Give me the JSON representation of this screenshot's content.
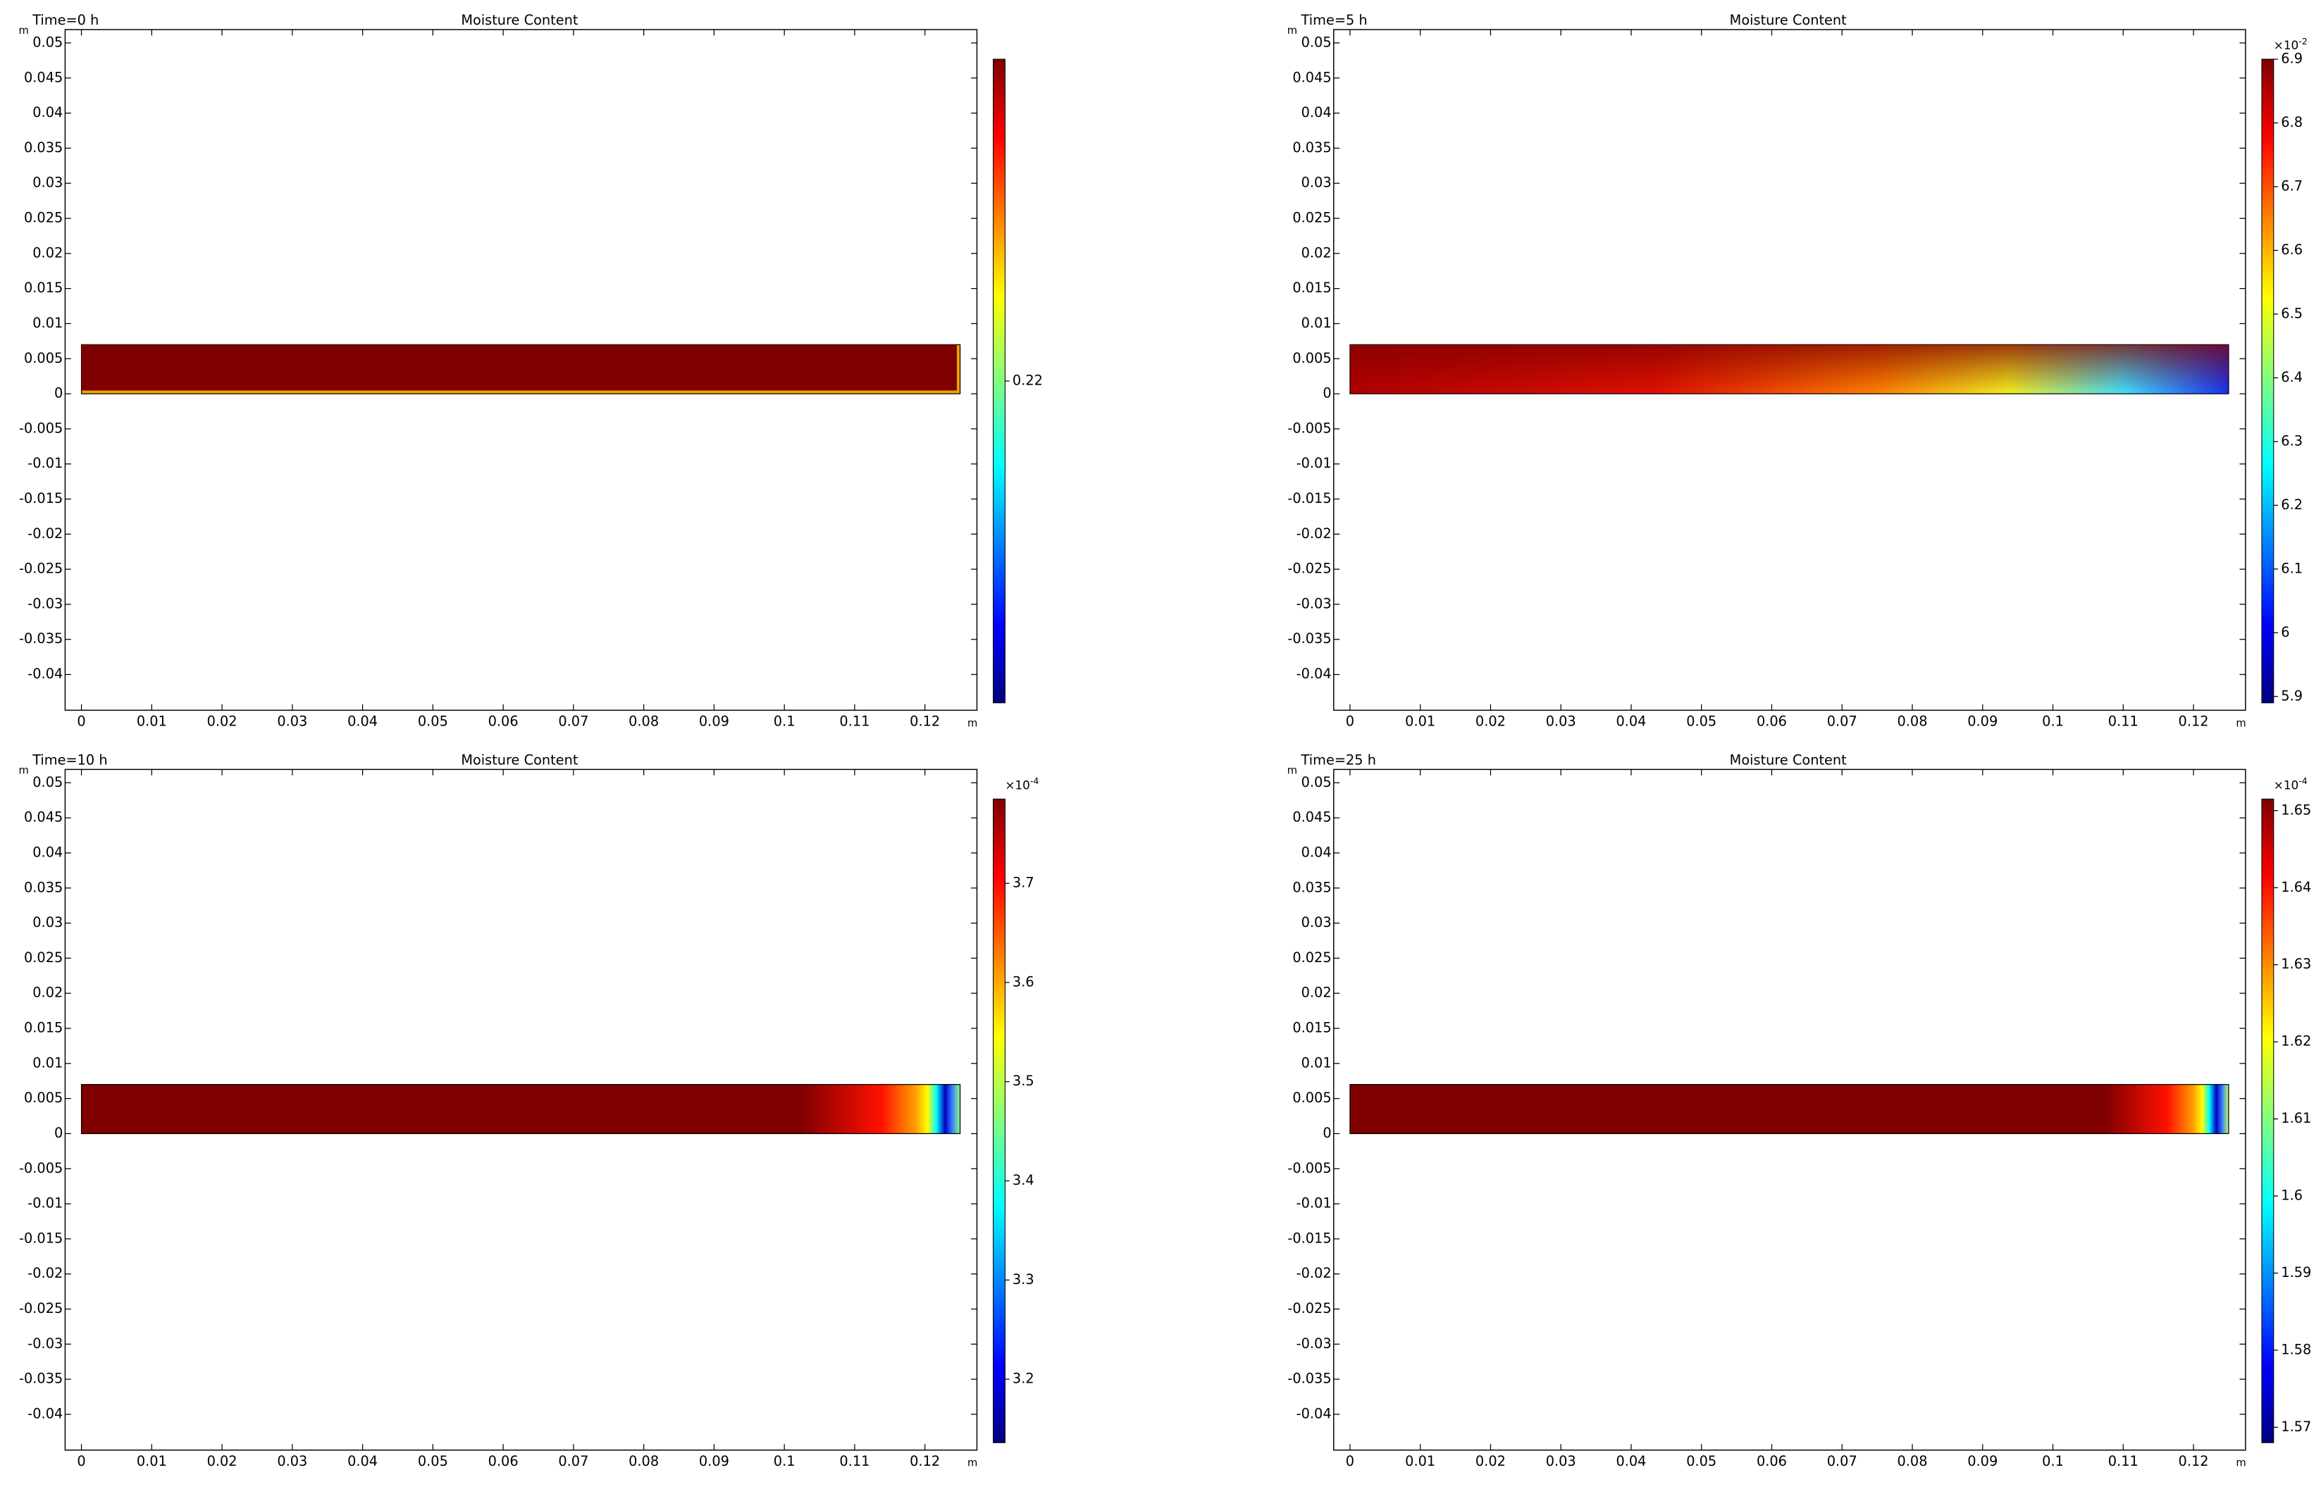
{
  "chart_data": [
    {
      "type": "surface",
      "time_label": "Time=0 h",
      "title": "Moisture Content",
      "x_unit": "m",
      "y_unit": "m",
      "xlim": [
        -0.00232,
        0.1274
      ],
      "ylim": [
        -0.0451,
        0.0519
      ],
      "xticks": [
        0,
        0.01,
        0.02,
        0.03,
        0.04,
        0.05,
        0.06,
        0.07,
        0.08,
        0.09,
        0.1,
        0.11,
        0.12
      ],
      "yticks": [
        0.05,
        0.045,
        0.04,
        0.035,
        0.03,
        0.025,
        0.02,
        0.015,
        0.01,
        0.005,
        0,
        -0.005,
        -0.01,
        -0.015,
        -0.02,
        -0.025,
        -0.03,
        -0.035,
        -0.04
      ],
      "domain_x": [
        0,
        0.125
      ],
      "domain_y": [
        0,
        0.007
      ],
      "colorbar": {
        "clim": [
          0.2,
          0.24
        ],
        "ticks": [
          0.22
        ]
      }
    },
    {
      "type": "surface",
      "time_label": "Time=5 h",
      "title": "Moisture Content",
      "x_unit": "m",
      "y_unit": "m",
      "xlim": [
        -0.00232,
        0.1274
      ],
      "ylim": [
        -0.0451,
        0.0519
      ],
      "xticks": [
        0,
        0.01,
        0.02,
        0.03,
        0.04,
        0.05,
        0.06,
        0.07,
        0.08,
        0.09,
        0.1,
        0.11,
        0.12
      ],
      "yticks": [
        0.05,
        0.045,
        0.04,
        0.035,
        0.03,
        0.025,
        0.02,
        0.015,
        0.01,
        0.005,
        0,
        -0.005,
        -0.01,
        -0.015,
        -0.02,
        -0.025,
        -0.03,
        -0.035,
        -0.04
      ],
      "domain_x": [
        0,
        0.125
      ],
      "domain_y": [
        0,
        0.007
      ],
      "colorbar": {
        "scale": "×10",
        "exponent": "-2",
        "clim": [
          5.89,
          6.9
        ],
        "ticks": [
          5.9,
          6,
          6.1,
          6.2,
          6.3,
          6.4,
          6.5,
          6.6,
          6.7,
          6.8,
          6.9
        ]
      }
    },
    {
      "type": "surface",
      "time_label": "Time=10 h",
      "title": "Moisture Content",
      "x_unit": "m",
      "y_unit": "m",
      "xlim": [
        -0.00232,
        0.1274
      ],
      "ylim": [
        -0.0451,
        0.0519
      ],
      "xticks": [
        0,
        0.01,
        0.02,
        0.03,
        0.04,
        0.05,
        0.06,
        0.07,
        0.08,
        0.09,
        0.1,
        0.11,
        0.12
      ],
      "yticks": [
        0.05,
        0.045,
        0.04,
        0.035,
        0.03,
        0.025,
        0.02,
        0.015,
        0.01,
        0.005,
        0,
        -0.005,
        -0.01,
        -0.015,
        -0.02,
        -0.025,
        -0.03,
        -0.035,
        -0.04
      ],
      "domain_x": [
        0,
        0.125
      ],
      "domain_y": [
        0,
        0.007
      ],
      "colorbar": {
        "scale": "×10",
        "exponent": "-4",
        "clim": [
          3.136,
          3.785
        ],
        "ticks": [
          3.2,
          3.3,
          3.4,
          3.5,
          3.6,
          3.7
        ]
      }
    },
    {
      "type": "surface",
      "time_label": "Time=25 h",
      "title": "Moisture Content",
      "x_unit": "m",
      "y_unit": "m",
      "xlim": [
        -0.00232,
        0.1274
      ],
      "ylim": [
        -0.0451,
        0.0519
      ],
      "xticks": [
        0,
        0.01,
        0.02,
        0.03,
        0.04,
        0.05,
        0.06,
        0.07,
        0.08,
        0.09,
        0.1,
        0.11,
        0.12
      ],
      "yticks": [
        0.05,
        0.045,
        0.04,
        0.035,
        0.03,
        0.025,
        0.02,
        0.015,
        0.01,
        0.005,
        0,
        -0.005,
        -0.01,
        -0.015,
        -0.02,
        -0.025,
        -0.03,
        -0.035,
        -0.04
      ],
      "domain_x": [
        0,
        0.125
      ],
      "domain_y": [
        0,
        0.007
      ],
      "colorbar": {
        "scale": "×10",
        "exponent": "-4",
        "clim": [
          1.568,
          1.6515
        ],
        "ticks": [
          1.57,
          1.58,
          1.59,
          1.6,
          1.61,
          1.62,
          1.63,
          1.64,
          1.65
        ]
      }
    }
  ]
}
